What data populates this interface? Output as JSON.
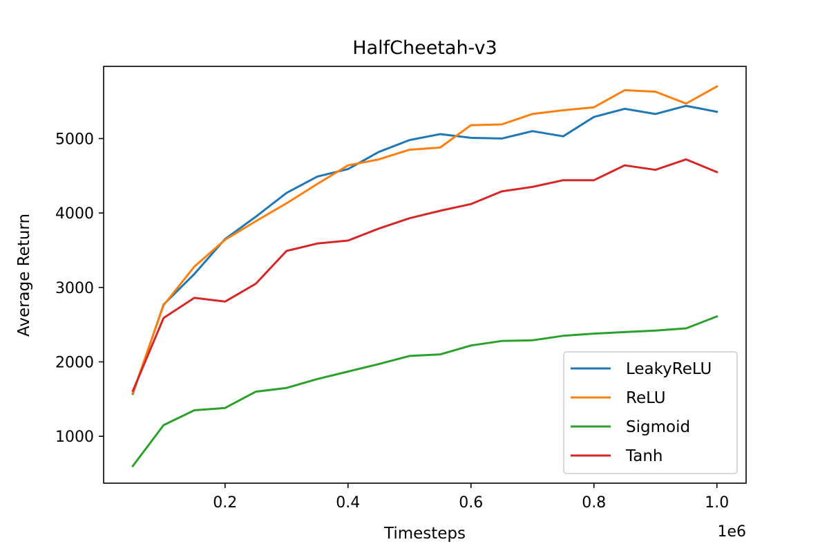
{
  "chart_data": {
    "type": "line",
    "title": "HalfCheetah-v3",
    "xlabel": "Timesteps",
    "ylabel": "Average Return",
    "x_offset_label": "1e6",
    "x": [
      0.05,
      0.1,
      0.15,
      0.2,
      0.25,
      0.3,
      0.35,
      0.4,
      0.45,
      0.5,
      0.55,
      0.6,
      0.65,
      0.7,
      0.75,
      0.8,
      0.85,
      0.9,
      0.95,
      1.0
    ],
    "xlim": [
      0.0025,
      1.0475
    ],
    "ylim": [
      370,
      5970
    ],
    "x_ticks": [
      0.2,
      0.4,
      0.6,
      0.8,
      1.0
    ],
    "x_tick_labels": [
      "0.2",
      "0.4",
      "0.6",
      "0.8",
      "1.0"
    ],
    "y_ticks": [
      1000,
      2000,
      3000,
      4000,
      5000
    ],
    "y_tick_labels": [
      "1000",
      "2000",
      "3000",
      "4000",
      "5000"
    ],
    "grid": false,
    "legend_position": "lower right",
    "series": [
      {
        "name": "LeakyReLU",
        "color": "#1f77b4",
        "values": [
          1570,
          2770,
          3180,
          3650,
          3950,
          4270,
          4490,
          4590,
          4820,
          4980,
          5060,
          5010,
          5000,
          5100,
          5030,
          5290,
          5400,
          5330,
          5440,
          5360
        ]
      },
      {
        "name": "ReLU",
        "color": "#ff7f0e",
        "values": [
          1580,
          2760,
          3280,
          3640,
          3890,
          4130,
          4390,
          4640,
          4720,
          4850,
          4880,
          5180,
          5190,
          5330,
          5380,
          5420,
          5650,
          5630,
          5470,
          5700
        ]
      },
      {
        "name": "Sigmoid",
        "color": "#2ca02c",
        "values": [
          600,
          1150,
          1350,
          1380,
          1600,
          1650,
          1770,
          1870,
          1970,
          2080,
          2100,
          2220,
          2280,
          2290,
          2350,
          2380,
          2400,
          2420,
          2450,
          2610
        ]
      },
      {
        "name": "Tanh",
        "color": "#d62728",
        "values": [
          1610,
          2590,
          2860,
          2810,
          3050,
          3490,
          3590,
          3630,
          3790,
          3930,
          4030,
          4120,
          4290,
          4350,
          4440,
          4440,
          4640,
          4580,
          4720,
          4550
        ]
      }
    ]
  }
}
